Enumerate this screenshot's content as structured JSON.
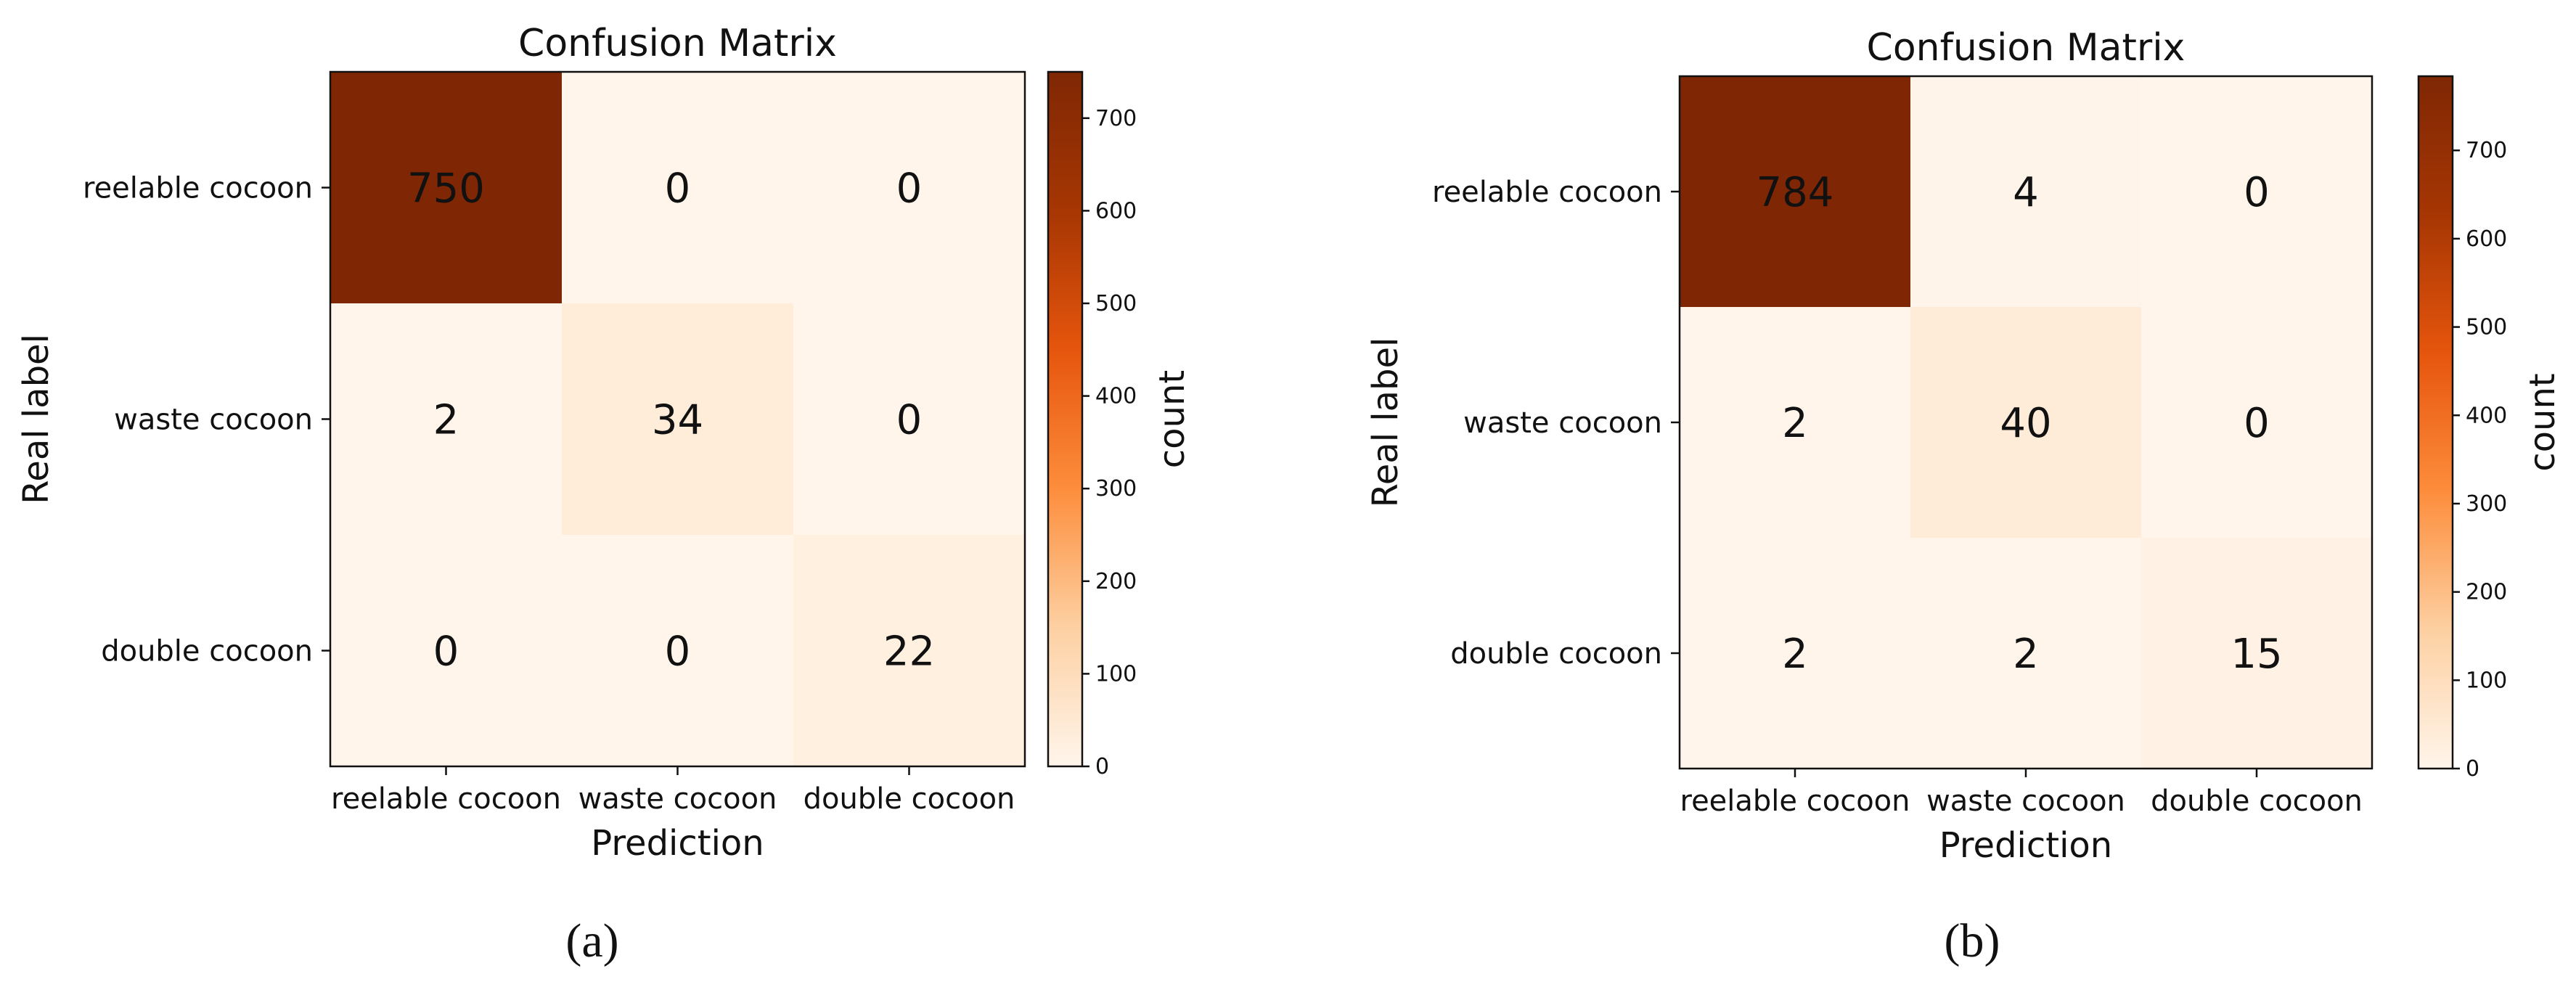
{
  "figure": {
    "panel_labels": [
      "(a)",
      "(b)"
    ]
  },
  "chart_data": [
    {
      "type": "heatmap",
      "title": "Confusion Matrix",
      "xlabel": "Prediction",
      "ylabel": "Real label",
      "x_categories": [
        "reelable cocoon",
        "waste cocoon",
        "double cocoon"
      ],
      "y_categories": [
        "reelable cocoon",
        "waste cocoon",
        "double cocoon"
      ],
      "values": [
        [
          750,
          0,
          0
        ],
        [
          2,
          34,
          0
        ],
        [
          0,
          0,
          22
        ]
      ],
      "colorbar": {
        "label": "count",
        "range": [
          0,
          750
        ],
        "ticks": [
          0,
          100,
          200,
          300,
          400,
          500,
          600,
          700
        ]
      },
      "colormap": [
        "#fff5eb",
        "#fdd0a2",
        "#fd8d3c",
        "#e6550d",
        "#a63603",
        "#7f2704"
      ]
    },
    {
      "type": "heatmap",
      "title": "Confusion Matrix",
      "xlabel": "Prediction",
      "ylabel": "Real label",
      "x_categories": [
        "reelable cocoon",
        "waste cocoon",
        "double cocoon"
      ],
      "y_categories": [
        "reelable cocoon",
        "waste cocoon",
        "double cocoon"
      ],
      "values": [
        [
          784,
          4,
          0
        ],
        [
          2,
          40,
          0
        ],
        [
          2,
          2,
          15
        ]
      ],
      "colorbar": {
        "label": "count",
        "range": [
          0,
          784
        ],
        "ticks": [
          0,
          100,
          200,
          300,
          400,
          500,
          600,
          700
        ]
      },
      "colormap": [
        "#fff5eb",
        "#fdd0a2",
        "#fd8d3c",
        "#e6550d",
        "#a63603",
        "#7f2704"
      ]
    }
  ]
}
